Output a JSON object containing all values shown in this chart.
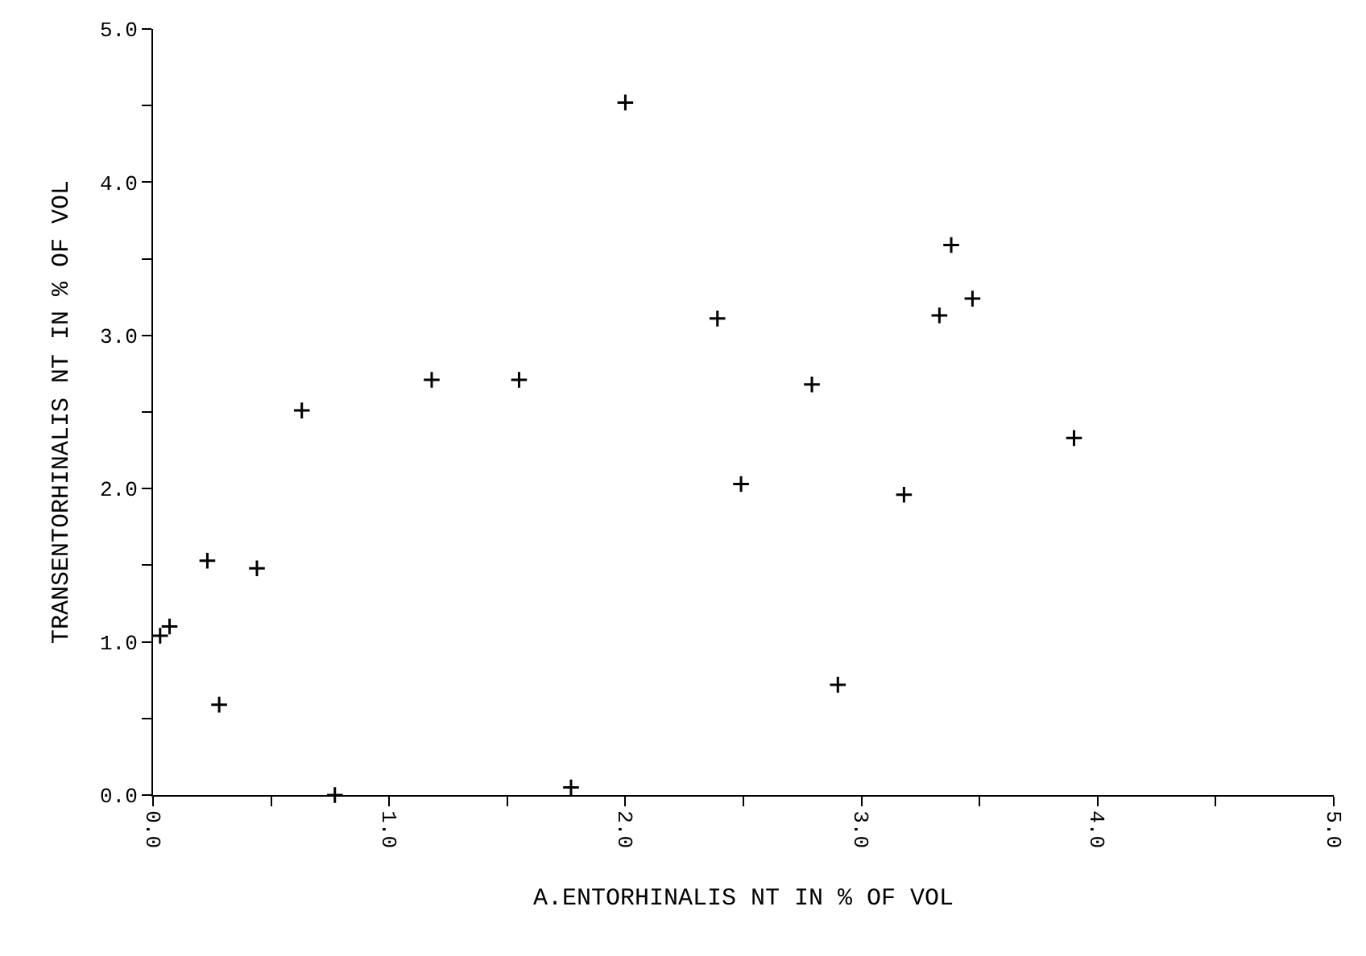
{
  "chart_data": {
    "type": "scatter",
    "xlabel": "A.ENTORHINALIS NT IN % OF VOL",
    "ylabel": "TRANSENTORHINALIS NT IN % OF VOL",
    "x": [
      0.03,
      0.07,
      0.23,
      0.28,
      0.44,
      0.63,
      0.77,
      1.18,
      1.55,
      1.77,
      2.0,
      2.39,
      2.49,
      2.79,
      2.9,
      3.18,
      3.33,
      3.38,
      3.47,
      3.9
    ],
    "series": [
      {
        "color": "#000000",
        "values": [
          1.04,
          1.1,
          1.53,
          0.59,
          1.48,
          2.51,
          0.0,
          2.71,
          2.71,
          0.05,
          4.52,
          3.11,
          2.03,
          2.68,
          0.72,
          1.96,
          3.13,
          3.59,
          3.24,
          2.33
        ]
      }
    ],
    "xlim": [
      0,
      5
    ],
    "ylim": [
      0,
      5
    ],
    "xticks": [
      {
        "value": 0,
        "label": "0.0"
      },
      {
        "value": 0.5,
        "label": null
      },
      {
        "value": 1,
        "label": "1.0"
      },
      {
        "value": 1.5,
        "label": null
      },
      {
        "value": 2,
        "label": "2.0"
      },
      {
        "value": 2.5,
        "label": null
      },
      {
        "value": 3,
        "label": "3.0"
      },
      {
        "value": 3.5,
        "label": null
      },
      {
        "value": 4,
        "label": "4.0"
      },
      {
        "value": 4.5,
        "label": null
      },
      {
        "value": 5,
        "label": "5.0"
      }
    ],
    "yticks": [
      {
        "value": 0,
        "label": "0.0"
      },
      {
        "value": 0.5,
        "label": null
      },
      {
        "value": 1,
        "label": "1.0"
      },
      {
        "value": 1.5,
        "label": null
      },
      {
        "value": 2,
        "label": "2.0"
      },
      {
        "value": 2.5,
        "label": null
      },
      {
        "value": 3,
        "label": "3.0"
      },
      {
        "value": 3.5,
        "label": null
      },
      {
        "value": 4,
        "label": "4.0"
      },
      {
        "value": 4.5,
        "label": null
      },
      {
        "value": 5,
        "label": "5.0"
      }
    ],
    "marker": "cross"
  }
}
